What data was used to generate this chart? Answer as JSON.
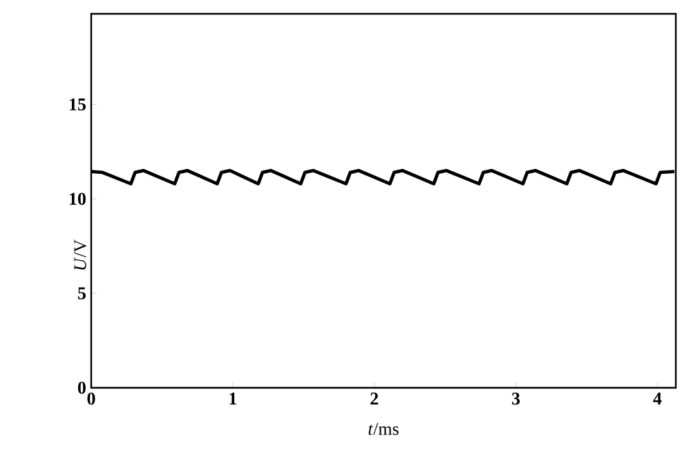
{
  "chart_data": {
    "type": "line",
    "xlabel": "*t*/ms",
    "ylabel": "*U*/V",
    "xlim": [
      0,
      4.13
    ],
    "ylim": [
      0,
      19.8
    ],
    "xticks": [
      0,
      1,
      2,
      3,
      4
    ],
    "yticks": [
      0,
      5,
      10,
      15
    ],
    "series": [
      {
        "color": "#000000",
        "x": [
          0,
          0.08,
          0.28,
          0.31,
          0.37,
          0.59,
          0.62,
          0.68,
          0.89,
          0.92,
          0.98,
          1.18,
          1.21,
          1.27,
          1.48,
          1.51,
          1.57,
          1.8,
          1.83,
          1.89,
          2.11,
          2.14,
          2.2,
          2.42,
          2.45,
          2.51,
          2.74,
          2.77,
          2.83,
          3.05,
          3.08,
          3.14,
          3.36,
          3.39,
          3.45,
          3.67,
          3.7,
          3.76,
          3.99,
          4.02,
          4.12
        ],
        "values": [
          11.45,
          11.4,
          10.8,
          11.4,
          11.5,
          10.8,
          11.4,
          11.5,
          10.8,
          11.4,
          11.5,
          10.8,
          11.4,
          11.5,
          10.8,
          11.4,
          11.5,
          10.8,
          11.4,
          11.5,
          10.8,
          11.4,
          11.5,
          10.8,
          11.4,
          11.5,
          10.8,
          11.4,
          11.5,
          10.8,
          11.4,
          11.5,
          10.8,
          11.4,
          11.5,
          10.8,
          11.4,
          11.5,
          10.8,
          11.4,
          11.45
        ]
      }
    ]
  }
}
